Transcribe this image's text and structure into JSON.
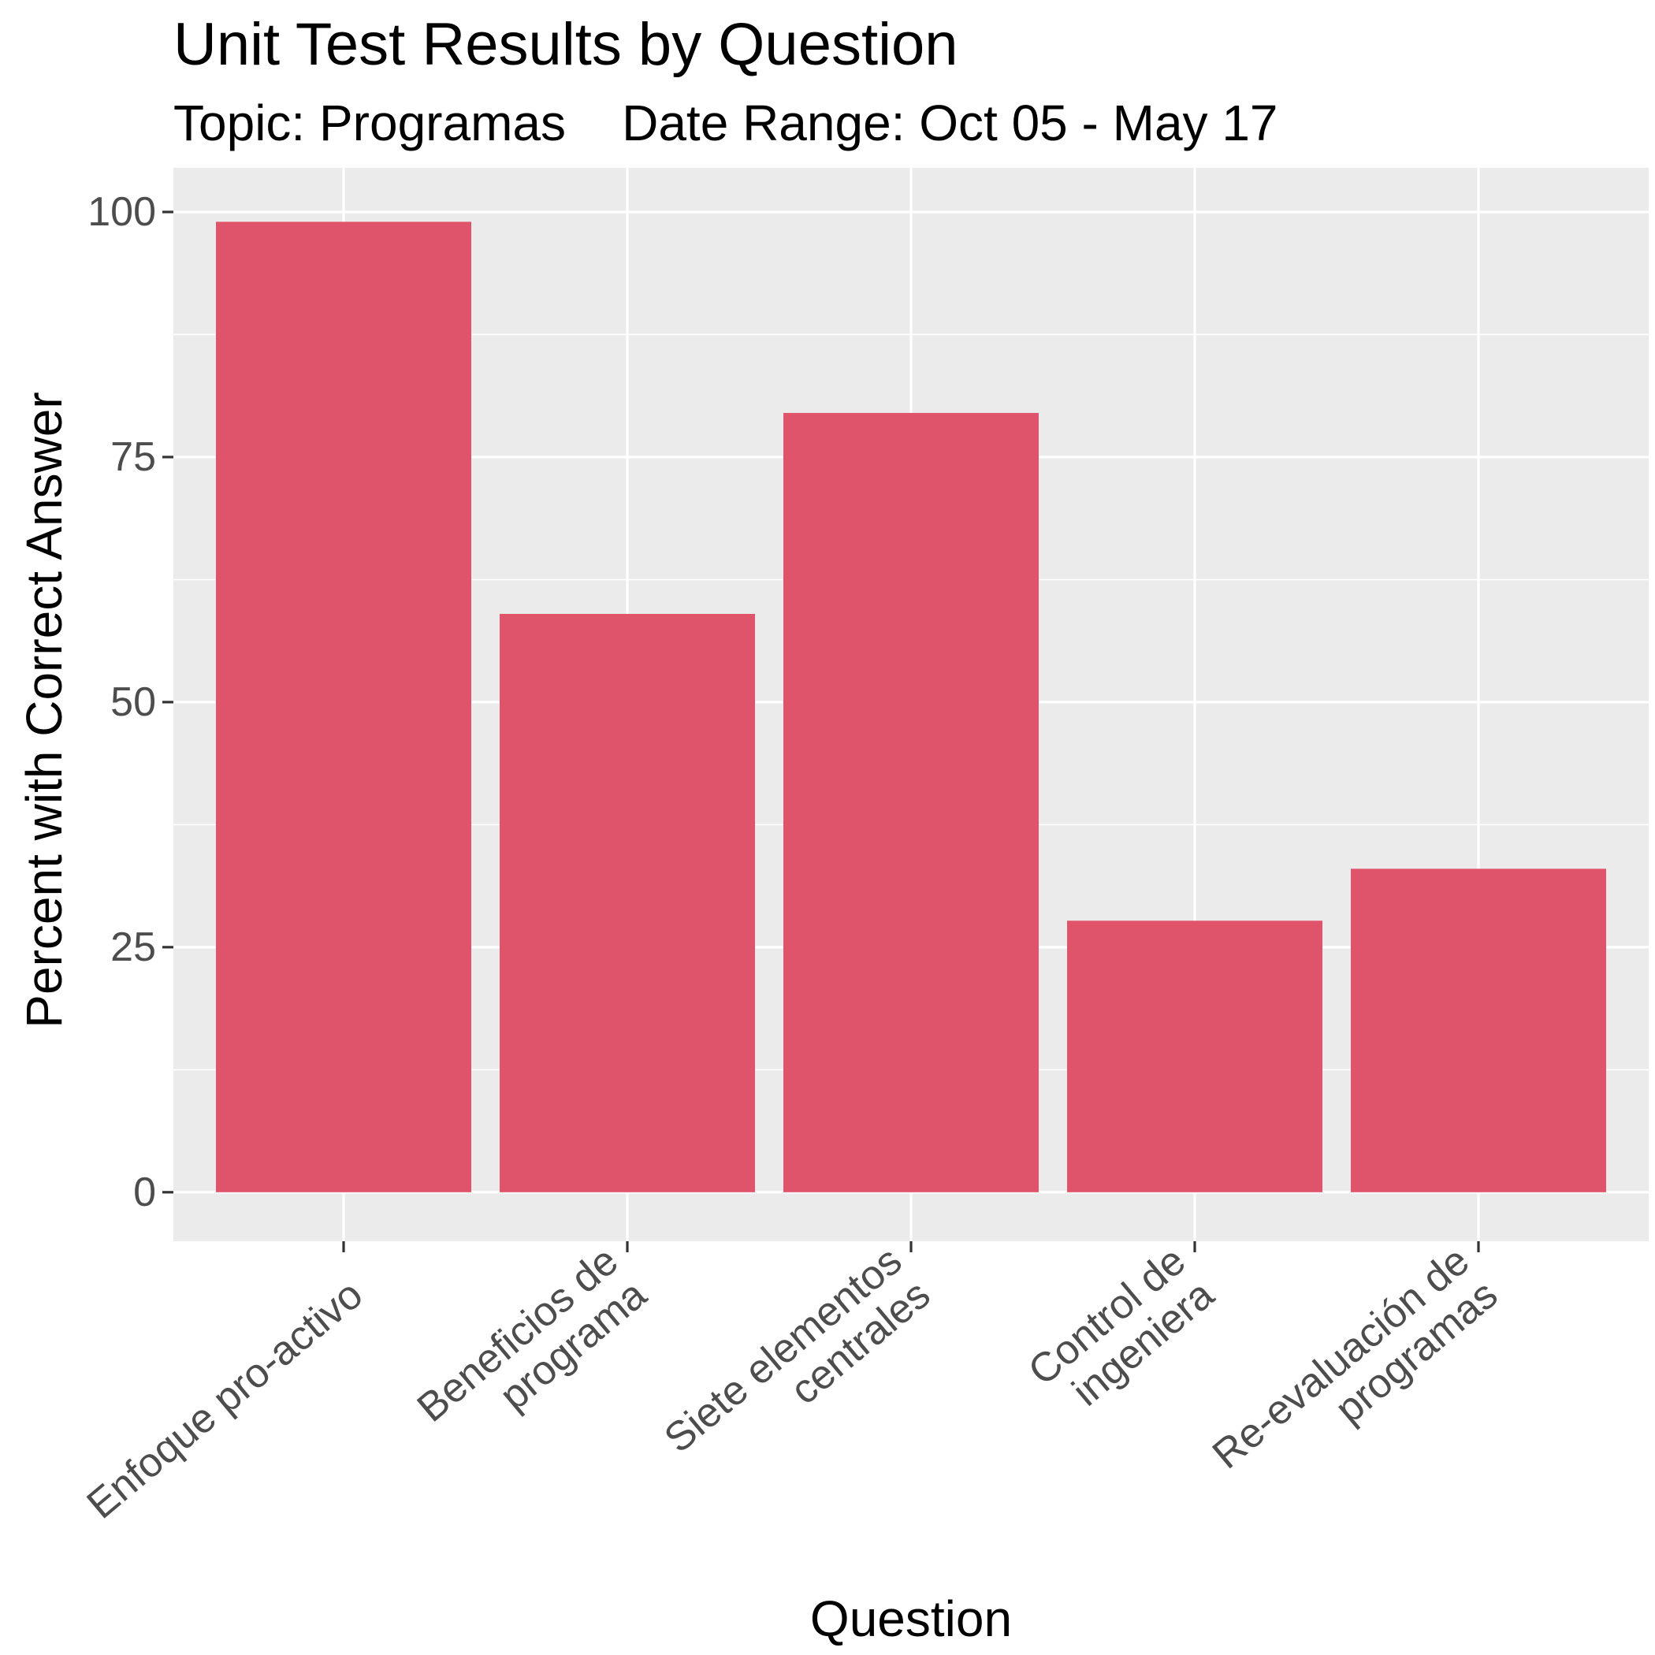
{
  "chart_data": {
    "type": "bar",
    "title": "Unit Test Results by Question",
    "subtitle": "Topic: Programas    Date Range: Oct 05 - May 17",
    "xlabel": "Question",
    "ylabel": "Percent with Correct Answer",
    "categories": [
      [
        "Enfoque pro-activo"
      ],
      [
        "Beneficios de",
        "programa"
      ],
      [
        "Siete elementos",
        "centrales"
      ],
      [
        "Control de",
        "ingeniera"
      ],
      [
        "Re-evaluación de",
        "programas"
      ]
    ],
    "values": [
      99,
      59,
      79.5,
      27.7,
      33
    ],
    "ylim": [
      -5,
      104.5
    ],
    "y_ticks": [
      0,
      25,
      50,
      75,
      100
    ],
    "y_tick_labels": [
      "0",
      "25",
      "50",
      "75",
      "100"
    ],
    "grid": true,
    "legend": "none",
    "colors": {
      "bar": "#E0546B",
      "panel": "#EBEBEB",
      "grid": "#FFFFFF",
      "tick_text": "#4D4D4D",
      "tick_mark": "#333333"
    }
  }
}
